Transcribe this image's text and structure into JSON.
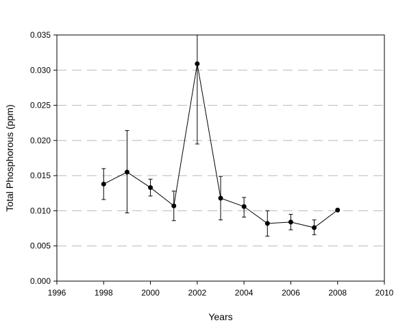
{
  "chart_data": {
    "type": "line",
    "title": "",
    "xlabel": "Years",
    "ylabel": "Total Phosphorous (ppm)",
    "xlim": [
      1996,
      2010
    ],
    "ylim": [
      0,
      0.035
    ],
    "x_ticks": [
      1996,
      1998,
      2000,
      2002,
      2004,
      2006,
      2008,
      2010
    ],
    "y_ticks": [
      "0.000",
      "0.005",
      "0.010",
      "0.015",
      "0.020",
      "0.025",
      "0.030",
      "0.035"
    ],
    "grid": "horizontal dashed",
    "series": [
      {
        "x": [
          1998,
          1999,
          2000,
          2001,
          2002,
          2003,
          2004,
          2005,
          2006,
          2007,
          2008
        ],
        "y": [
          0.0138,
          0.0155,
          0.0133,
          0.0107,
          0.0309,
          0.0118,
          0.0106,
          0.0082,
          0.0084,
          0.0076,
          0.0101
        ],
        "err_low": [
          0.0116,
          0.0097,
          0.0121,
          0.0086,
          0.0195,
          0.0087,
          0.0091,
          0.0064,
          0.0073,
          0.0066,
          0.0101
        ],
        "err_high": [
          0.016,
          0.0214,
          0.0145,
          0.0128,
          0.035,
          0.0149,
          0.0119,
          0.01,
          0.0095,
          0.0087,
          0.0101
        ]
      }
    ],
    "colors": {
      "line": "#000000",
      "grid": "#b8b8b8",
      "marker": "#000000"
    }
  }
}
